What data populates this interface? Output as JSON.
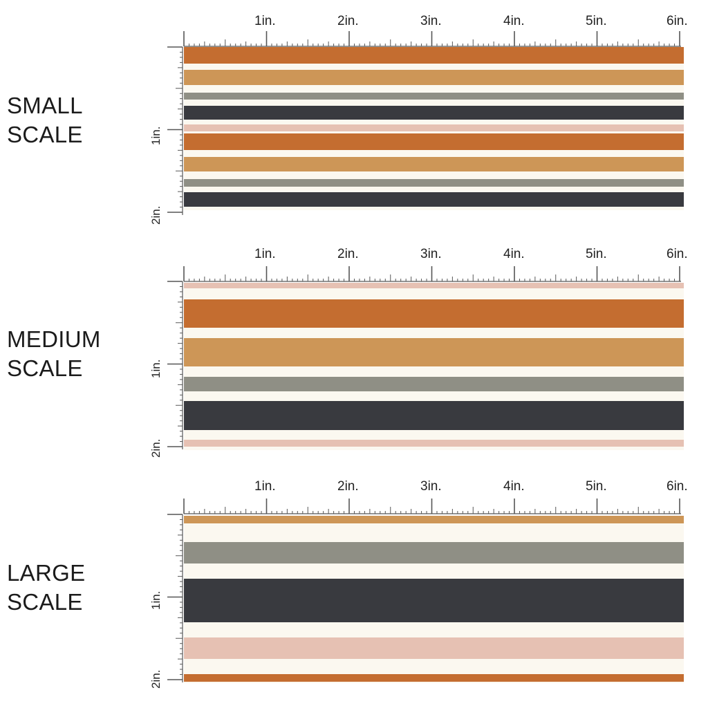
{
  "colors": {
    "background": "#fbf8f0",
    "rust": "#c46d30",
    "ochre": "#cd9657",
    "sage": "#8f8f85",
    "charcoal": "#393a3f",
    "blush": "#e6c1b3",
    "ruler": "#555555"
  },
  "panels": [
    {
      "label": "SMALL\nSCALE",
      "ruler": {
        "h_labels": [
          "1in.",
          "2in.",
          "3in.",
          "4in.",
          "5in.",
          "6in."
        ],
        "v_labels": [
          "1in.",
          "2in."
        ]
      },
      "repeat_in": 1.05,
      "stripes": [
        {
          "color": "rust",
          "start_in": 0.0,
          "height_in": 0.2
        },
        {
          "color": "ochre",
          "start_in": 0.28,
          "height_in": 0.18
        },
        {
          "color": "sage",
          "start_in": 0.55,
          "height_in": 0.09
        },
        {
          "color": "charcoal",
          "start_in": 0.71,
          "height_in": 0.17
        },
        {
          "color": "blush",
          "start_in": 0.94,
          "height_in": 0.08
        }
      ]
    },
    {
      "label": "MEDIUM\nSCALE",
      "ruler": {
        "h_labels": [
          "1in.",
          "2in.",
          "3in.",
          "4in.",
          "5in.",
          "6in."
        ],
        "v_labels": [
          "1in.",
          "2in."
        ]
      },
      "repeat_in": 2.13,
      "stripes": [
        {
          "color": "blush",
          "start_in": 0.0,
          "height_in": 0.07
        },
        {
          "color": "rust",
          "start_in": 0.2,
          "height_in": 0.34
        },
        {
          "color": "ochre",
          "start_in": 0.67,
          "height_in": 0.34
        },
        {
          "color": "sage",
          "start_in": 1.14,
          "height_in": 0.17
        },
        {
          "color": "charcoal",
          "start_in": 1.43,
          "height_in": 0.35
        },
        {
          "color": "blush",
          "start_in": 1.9,
          "height_in": 0.08
        }
      ]
    },
    {
      "label": "LARGE\nSCALE",
      "ruler": {
        "h_labels": [
          "1in.",
          "2in.",
          "3in.",
          "4in.",
          "5in.",
          "6in."
        ],
        "v_labels": [
          "1in.",
          "2in."
        ]
      },
      "repeat_in": 4.3,
      "stripes": [
        {
          "color": "ochre",
          "start_in": 0.0,
          "height_in": 0.09
        },
        {
          "color": "sage",
          "start_in": 0.32,
          "height_in": 0.26
        },
        {
          "color": "charcoal",
          "start_in": 0.76,
          "height_in": 0.53
        },
        {
          "color": "blush",
          "start_in": 1.47,
          "height_in": 0.26
        },
        {
          "color": "rust",
          "start_in": 1.92,
          "height_in": 0.09
        }
      ]
    }
  ]
}
